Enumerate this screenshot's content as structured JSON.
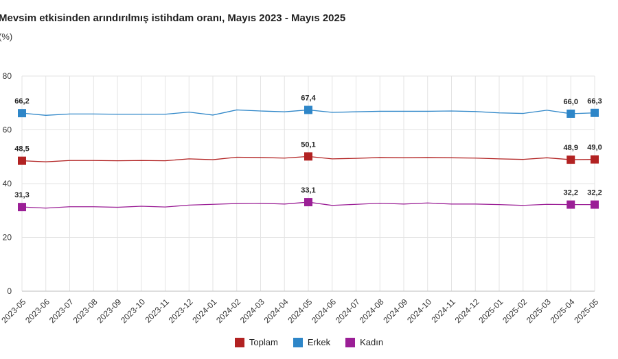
{
  "chart_data": {
    "type": "line",
    "title": "Mevsim etkisinden arındırılmış istihdam oranı, Mayıs 2023 - Mayıs 2025",
    "subtitle": "(%)",
    "xlabel": "",
    "ylabel": "",
    "ylim": [
      0,
      80
    ],
    "yticks": [
      0,
      20,
      40,
      60,
      80
    ],
    "grid": true,
    "legend_position": "bottom-center",
    "categories": [
      "2023-05",
      "2023-06",
      "2023-07",
      "2023-08",
      "2023-09",
      "2023-10",
      "2023-11",
      "2023-12",
      "2024-01",
      "2024-02",
      "2024-03",
      "2024-04",
      "2024-05",
      "2024-06",
      "2024-07",
      "2024-08",
      "2024-09",
      "2024-10",
      "2024-11",
      "2024-12",
      "2025-01",
      "2025-02",
      "2025-03",
      "2025-04",
      "2025-05"
    ],
    "series": [
      {
        "name": "Toplam",
        "color": "#b22222",
        "values": [
          48.5,
          48.1,
          48.6,
          48.6,
          48.5,
          48.6,
          48.5,
          49.2,
          48.9,
          49.8,
          49.7,
          49.5,
          50.1,
          49.2,
          49.4,
          49.7,
          49.6,
          49.7,
          49.6,
          49.5,
          49.2,
          49.0,
          49.6,
          48.9,
          49.0
        ],
        "labels": {
          "0": "48,5",
          "12": "50,1",
          "23": "48,9",
          "24": "49,0"
        }
      },
      {
        "name": "Erkek",
        "color": "#2e86c8",
        "values": [
          66.2,
          65.4,
          65.9,
          65.9,
          65.8,
          65.8,
          65.8,
          66.6,
          65.5,
          67.4,
          67.0,
          66.7,
          67.4,
          66.5,
          66.7,
          66.9,
          66.9,
          66.9,
          67.0,
          66.8,
          66.3,
          66.1,
          67.3,
          66.0,
          66.3
        ],
        "labels": {
          "0": "66,2",
          "12": "67,4",
          "23": "66,0",
          "24": "66,3"
        }
      },
      {
        "name": "Kadın",
        "color": "#9b1f96",
        "values": [
          31.3,
          30.9,
          31.4,
          31.4,
          31.2,
          31.6,
          31.3,
          32.0,
          32.3,
          32.6,
          32.7,
          32.4,
          33.1,
          31.9,
          32.3,
          32.7,
          32.4,
          32.8,
          32.4,
          32.4,
          32.2,
          31.9,
          32.3,
          32.2,
          32.2
        ],
        "labels": {
          "0": "31,3",
          "12": "33,1",
          "23": "32,2",
          "24": "32,2"
        }
      }
    ]
  }
}
